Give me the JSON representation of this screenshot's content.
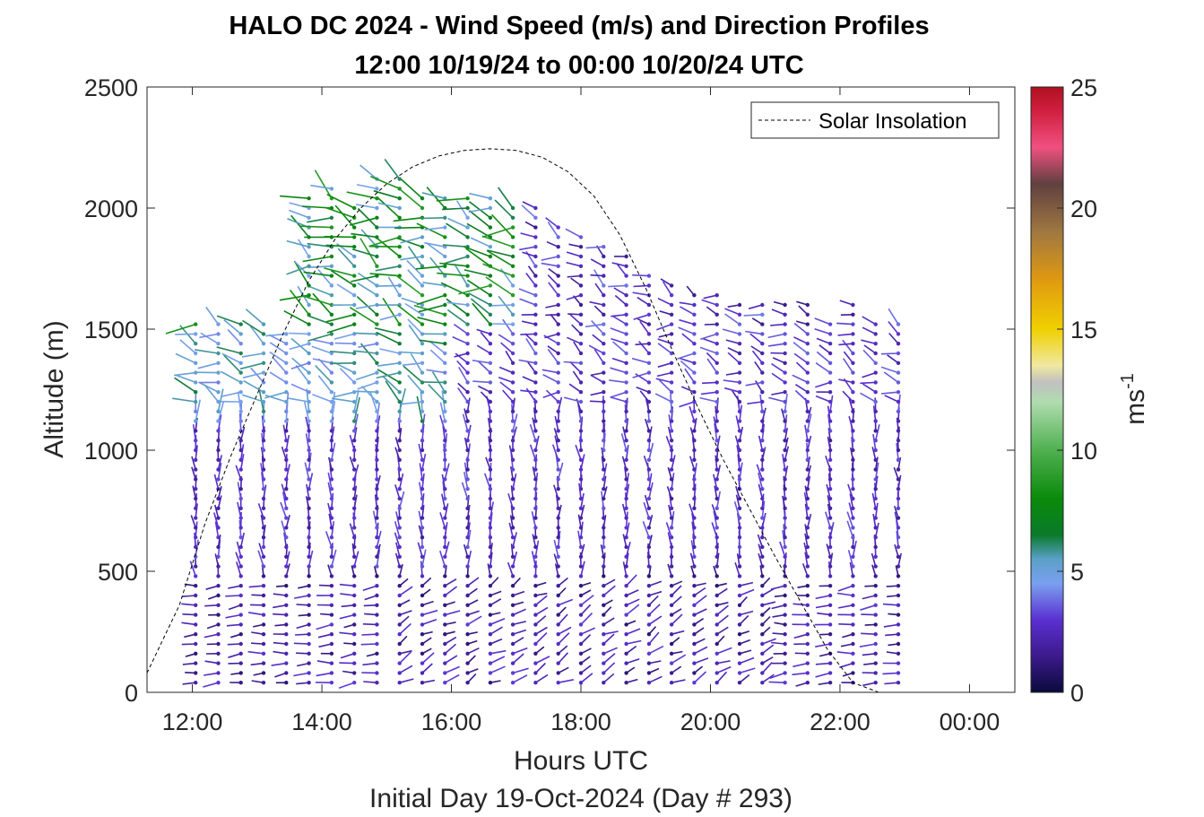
{
  "chart_data": {
    "type": "scatter",
    "title_line1": "HALO DC 2024 - Wind Speed (m/s) and Direction Profiles",
    "title_line2": "12:00 10/19/24 to 00:00 10/20/24  UTC",
    "xlabel": "Hours UTC",
    "xlabel2": "Initial Day 19-Oct-2024 (Day # 293)",
    "ylabel": "Altitude (m)",
    "xlim": [
      11.3,
      24.7
    ],
    "ylim": [
      0,
      2500
    ],
    "xticks": [
      {
        "value": 12,
        "label": "12:00"
      },
      {
        "value": 14,
        "label": "14:00"
      },
      {
        "value": 16,
        "label": "16:00"
      },
      {
        "value": 18,
        "label": "18:00"
      },
      {
        "value": 20,
        "label": "20:00"
      },
      {
        "value": 22,
        "label": "22:00"
      },
      {
        "value": 24,
        "label": "00:00"
      }
    ],
    "yticks": [
      {
        "value": 0,
        "label": "0"
      },
      {
        "value": 500,
        "label": "500"
      },
      {
        "value": 1000,
        "label": "1000"
      },
      {
        "value": 1500,
        "label": "1500"
      },
      {
        "value": 2000,
        "label": "2000"
      },
      {
        "value": 2500,
        "label": "2500"
      }
    ],
    "legend": {
      "label": "Solar Insolation",
      "position": "top-right"
    },
    "colorbar": {
      "label": "ms",
      "label_superscript": "-1",
      "min": 0,
      "max": 25,
      "ticks": [
        {
          "value": 0,
          "label": "0"
        },
        {
          "value": 5,
          "label": "5"
        },
        {
          "value": 10,
          "label": "10"
        },
        {
          "value": 15,
          "label": "15"
        },
        {
          "value": 20,
          "label": "20"
        },
        {
          "value": 25,
          "label": "25"
        }
      ],
      "stops": [
        {
          "v": 0,
          "c": "#0a0a3c"
        },
        {
          "v": 1.5,
          "c": "#3c1a8c"
        },
        {
          "v": 3,
          "c": "#5a30d0"
        },
        {
          "v": 4.5,
          "c": "#7aa0f0"
        },
        {
          "v": 5.5,
          "c": "#5aa0c8"
        },
        {
          "v": 6.5,
          "c": "#0a7a2a"
        },
        {
          "v": 8,
          "c": "#0a8a0a"
        },
        {
          "v": 10,
          "c": "#50b050"
        },
        {
          "v": 12,
          "c": "#b0dcb0"
        },
        {
          "v": 12.8,
          "c": "#c0c0c0"
        },
        {
          "v": 13.5,
          "c": "#f0e8a0"
        },
        {
          "v": 15,
          "c": "#f0d000"
        },
        {
          "v": 17,
          "c": "#e09a10"
        },
        {
          "v": 19,
          "c": "#a07840"
        },
        {
          "v": 21,
          "c": "#604040"
        },
        {
          "v": 22.5,
          "c": "#f05080"
        },
        {
          "v": 24,
          "c": "#d02040"
        },
        {
          "v": 25,
          "c": "#b01020"
        }
      ]
    },
    "solar_insolation": {
      "x": [
        11.3,
        11.8,
        12.2,
        12.6,
        13.0,
        13.4,
        13.8,
        14.2,
        14.6,
        15.0,
        15.4,
        15.8,
        16.2,
        16.6,
        17.0,
        17.4,
        17.8,
        18.2,
        18.6,
        19.0,
        19.4,
        19.8,
        20.2,
        20.6,
        21.0,
        21.4,
        21.8,
        22.2,
        22.6,
        22.7,
        24.7
      ],
      "y": [
        80,
        360,
        700,
        980,
        1230,
        1480,
        1700,
        1870,
        2000,
        2100,
        2170,
        2215,
        2238,
        2245,
        2238,
        2210,
        2150,
        2050,
        1890,
        1670,
        1420,
        1180,
        960,
        760,
        560,
        370,
        180,
        40,
        0,
        0,
        0
      ]
    },
    "wind_barbs": {
      "times": [
        12.05,
        12.4,
        12.75,
        13.1,
        13.45,
        13.8,
        14.15,
        14.5,
        14.85,
        15.2,
        15.55,
        15.9,
        16.25,
        16.6,
        16.95,
        17.3,
        17.65,
        18.0,
        18.35,
        18.7,
        19.05,
        19.4,
        19.75,
        20.1,
        20.45,
        20.8,
        21.15,
        21.5,
        21.85,
        22.2,
        22.55,
        22.9
      ],
      "max_altitude": [
        1550,
        1550,
        1550,
        1550,
        1500,
        2050,
        2100,
        2000,
        2150,
        2150,
        2050,
        2050,
        2050,
        2050,
        2000,
        2000,
        1950,
        1900,
        1850,
        1800,
        1750,
        1700,
        1650,
        1650,
        1600,
        1600,
        1600,
        1600,
        1550,
        1600,
        1550,
        1550
      ],
      "altitude_step": 40
    }
  }
}
